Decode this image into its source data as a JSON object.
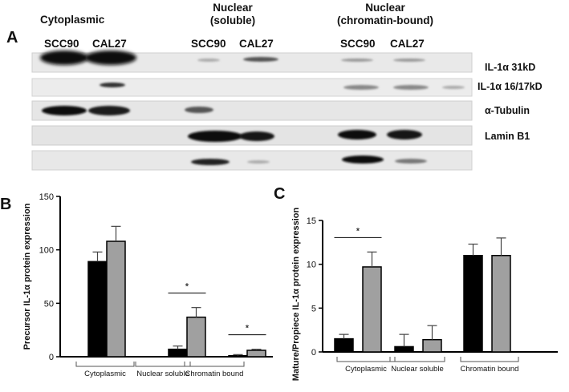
{
  "panel_a": {
    "letter": "A",
    "headers": [
      "Cytoplasmic",
      "Nuclear\n(soluble)",
      "Nuclear\n(chromatin-bound)"
    ],
    "lanes": [
      "SCC90",
      "CAL27",
      "SCC90",
      "CAL27",
      "SCC90",
      "CAL27"
    ],
    "blot_labels": [
      "IL-1α 31kD",
      "IL-1α 16/17kD",
      "α-Tubulin",
      "Lamin B1"
    ]
  },
  "chart_data": [
    {
      "panel": "B",
      "type": "bar",
      "ylabel": "Precursor IL-1α protein expression",
      "ylim": [
        0,
        150
      ],
      "yticks": [
        0,
        50,
        100,
        150
      ],
      "groups": [
        "Cytoplasmic",
        "Nuclear soluble",
        "Chromatin bound"
      ],
      "series": [
        {
          "color": "#000000",
          "values": [
            89,
            7,
            1
          ],
          "errors": [
            9,
            3,
            1
          ]
        },
        {
          "color": "#a0a0a0",
          "values": [
            108,
            37,
            6
          ],
          "errors": [
            14,
            9,
            1
          ]
        }
      ],
      "annotations": [
        {
          "text": "*",
          "group": 1
        },
        {
          "text": "*",
          "group": 2
        }
      ]
    },
    {
      "panel": "C",
      "type": "bar",
      "ylabel": "Mature/Propiece IL-1α protein expression",
      "ylim": [
        0,
        15
      ],
      "yticks": [
        0,
        5,
        10,
        15
      ],
      "groups": [
        "Cytoplasmic",
        "Nuclear soluble",
        "Chromatin bound"
      ],
      "series": [
        {
          "color": "#000000",
          "values": [
            1.5,
            0.6,
            11.0
          ],
          "errors": [
            0.5,
            1.4,
            1.3
          ]
        },
        {
          "color": "#a0a0a0",
          "values": [
            9.7,
            1.4,
            11.0
          ],
          "errors": [
            1.7,
            1.6,
            2.0
          ]
        }
      ],
      "annotations": [
        {
          "text": "*",
          "group": 0
        }
      ]
    }
  ]
}
